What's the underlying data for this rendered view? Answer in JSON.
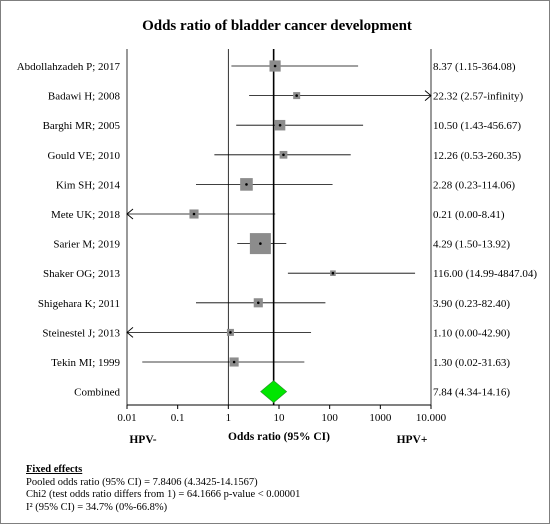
{
  "chart_data": {
    "type": "forest",
    "title": "Odds ratio of bladder cancer development",
    "xlabel": "Odds ratio (95% CI)",
    "left_label": "HPV-",
    "right_label": "HPV+",
    "x_scale": "log",
    "xlim": [
      0.01,
      10000
    ],
    "ticks": [
      "0.01",
      "0.1",
      "1",
      "10",
      "100",
      "1000",
      "10.000"
    ],
    "tick_values": [
      0.01,
      0.1,
      1,
      10,
      100,
      1000,
      10000
    ],
    "reference_line": 7.84,
    "studies": [
      {
        "name": "Abdollahzadeh P; 2017",
        "or": 8.37,
        "lo": 1.15,
        "hi": 364.08,
        "label": "8.37 (1.15-364.08)",
        "weight": 1.6
      },
      {
        "name": "Badawi H; 2008",
        "or": 22.32,
        "lo": 2.57,
        "hi": null,
        "label": "22.32 (2.57-infinity)",
        "weight": 1.0
      },
      {
        "name": "Barghi MR; 2005",
        "or": 10.5,
        "lo": 1.43,
        "hi": 456.67,
        "label": "10.50 (1.43-456.67)",
        "weight": 1.5
      },
      {
        "name": "Gould VE; 2010",
        "or": 12.26,
        "lo": 0.53,
        "hi": 260.35,
        "label": "12.26 (0.53-260.35)",
        "weight": 1.1
      },
      {
        "name": "Kim SH; 2014",
        "or": 2.28,
        "lo": 0.23,
        "hi": 114.06,
        "label": "2.28 (0.23-114.06)",
        "weight": 1.8
      },
      {
        "name": "Mete UK; 2018",
        "or": 0.21,
        "lo": 0.0,
        "hi": 8.41,
        "label": "0.21 (0.00-8.41)",
        "weight": 1.3
      },
      {
        "name": "Sarier M; 2019",
        "or": 4.29,
        "lo": 1.5,
        "hi": 13.92,
        "label": "4.29 (1.50-13.92)",
        "weight": 3.0
      },
      {
        "name": "Shaker OG; 2013",
        "or": 116.0,
        "lo": 14.99,
        "hi": 4847.04,
        "label": "116.00 (14.99-4847.04)",
        "weight": 0.8
      },
      {
        "name": "Shigehara K; 2011",
        "or": 3.9,
        "lo": 0.23,
        "hi": 82.4,
        "label": "3.90 (0.23-82.40)",
        "weight": 1.3
      },
      {
        "name": "Steinestel J; 2013",
        "or": 1.1,
        "lo": 0.0,
        "hi": 42.9,
        "label": "1.10 (0.00-42.90)",
        "weight": 1.0
      },
      {
        "name": "Tekin MI; 1999",
        "or": 1.3,
        "lo": 0.02,
        "hi": 31.63,
        "label": "1.30 (0.02-31.63)",
        "weight": 1.3
      }
    ],
    "combined": {
      "name": "Combined",
      "or": 7.84,
      "lo": 4.34,
      "hi": 14.16,
      "label": "7.84 (4.34-14.16)"
    },
    "colors": {
      "box": "#8c8c8c",
      "diamond": "#00e600",
      "line": "#000000"
    }
  },
  "stats": {
    "header": "Fixed effects",
    "pooled": "Pooled odds ratio (95% CI) = 7.8406 (4.3425-14.1567)",
    "chi2": "Chi2 (test odds ratio differs from 1) = 64.1666 p-value < 0.00001",
    "i2": "I² (95% CI) = 34.7% (0%-66.8%)"
  }
}
